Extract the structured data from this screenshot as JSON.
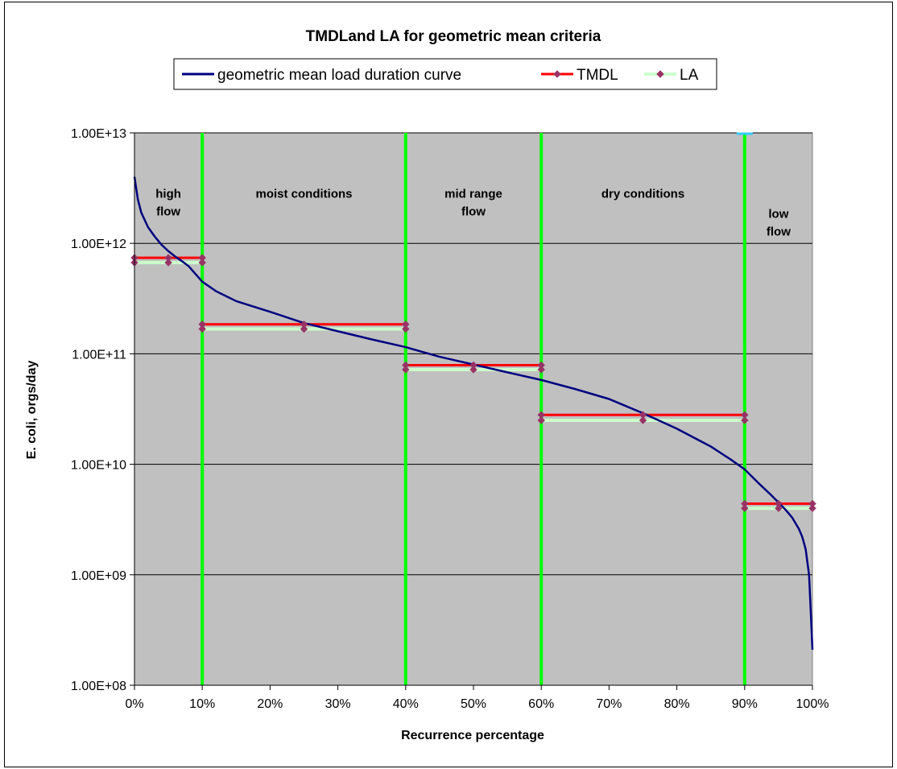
{
  "chart_data": {
    "type": "line",
    "title": "TMDLand LA for geometric mean criteria",
    "xlabel": "Recurrence percentage",
    "ylabel": "E. coli, orgs/day",
    "x_scale": "linear",
    "y_scale": "log",
    "xlim": [
      0,
      100
    ],
    "ylim": [
      100000000,
      10000000000000
    ],
    "x_ticks": [
      0,
      10,
      20,
      30,
      40,
      50,
      60,
      70,
      80,
      90,
      100
    ],
    "x_tick_labels": [
      "0%",
      "10%",
      "20%",
      "30%",
      "40%",
      "50%",
      "60%",
      "70%",
      "80%",
      "90%",
      "100%"
    ],
    "y_ticks": [
      100000000,
      1000000000,
      10000000000,
      100000000000,
      1000000000000,
      10000000000000
    ],
    "y_tick_labels": [
      "1.00E+08",
      "1.00E+09",
      "1.00E+10",
      "1.00E+11",
      "1.00E+12",
      "1.00E+13"
    ],
    "grid": "horizontal",
    "plot_background": "#c0c0c0",
    "legend": {
      "placement": "top",
      "entries": [
        "geometric mean load duration curve",
        "TMDL",
        "LA"
      ]
    },
    "series": [
      {
        "name": "geometric mean load duration curve",
        "color": "#000080",
        "x": [
          0,
          0.5,
          1,
          2,
          3,
          4,
          5,
          6,
          7,
          8,
          10,
          12,
          15,
          20,
          25,
          30,
          35,
          40,
          45,
          50,
          55,
          60,
          65,
          70,
          75,
          80,
          85,
          88,
          90,
          92,
          94,
          95,
          96,
          97,
          98,
          98.5,
          99,
          99.5,
          99.8,
          100
        ],
        "y": [
          4000000000000.0,
          2500000000000.0,
          1900000000000.0,
          1400000000000.0,
          1150000000000.0,
          970000000000.0,
          850000000000.0,
          760000000000.0,
          690000000000.0,
          620000000000.0,
          450000000000.0,
          370000000000.0,
          300000000000.0,
          240000000000.0,
          190000000000.0,
          160000000000.0,
          135000000000.0,
          115000000000.0,
          94000000000.0,
          80000000000.0,
          68000000000.0,
          58000000000.0,
          48000000000.0,
          39000000000.0,
          29000000000.0,
          21000000000.0,
          14500000000.0,
          11000000000.0,
          9000000000.0,
          6800000000.0,
          5200000000.0,
          4500000000.0,
          3900000000.0,
          3300000000.0,
          2600000000.0,
          2200000000.0,
          1700000000.0,
          1000000000.0,
          400000000.0,
          210000000.0
        ]
      },
      {
        "name": "TMDL",
        "color": "#ff0000",
        "segments": [
          {
            "x": [
              0,
              5,
              10
            ],
            "y": [
              740000000000.0,
              740000000000.0,
              740000000000.0
            ]
          },
          {
            "x": [
              10,
              25,
              40
            ],
            "y": [
              185000000000.0,
              185000000000.0,
              185000000000.0
            ]
          },
          {
            "x": [
              40,
              50,
              60
            ],
            "y": [
              79000000000.0,
              79000000000.0,
              79000000000.0
            ]
          },
          {
            "x": [
              60,
              75,
              90
            ],
            "y": [
              28000000000.0,
              28000000000.0,
              28000000000.0
            ]
          },
          {
            "x": [
              90,
              95,
              100
            ],
            "y": [
              4400000000.0,
              4400000000.0,
              4400000000.0
            ]
          }
        ]
      },
      {
        "name": "LA",
        "color": "#ccffcc",
        "marker_color": "#993366",
        "segments": [
          {
            "x": [
              0,
              5,
              10
            ],
            "y": [
              670000000000.0,
              670000000000.0,
              670000000000.0
            ]
          },
          {
            "x": [
              10,
              25,
              40
            ],
            "y": [
              168000000000.0,
              168000000000.0,
              168000000000.0
            ]
          },
          {
            "x": [
              40,
              50,
              60
            ],
            "y": [
              72000000000.0,
              72000000000.0,
              72000000000.0
            ]
          },
          {
            "x": [
              60,
              75,
              90
            ],
            "y": [
              25000000000.0,
              25000000000.0,
              25000000000.0
            ]
          },
          {
            "x": [
              90,
              95,
              100
            ],
            "y": [
              4000000000.0,
              4000000000.0,
              4000000000.0
            ]
          }
        ]
      }
    ],
    "dividers": {
      "color": "#00ff00",
      "x": [
        10,
        40,
        60,
        90
      ]
    },
    "regions": [
      {
        "lines": [
          "high",
          "flow"
        ],
        "x": 5,
        "y": 2600000000000.0
      },
      {
        "lines": [
          "moist conditions"
        ],
        "x": 25,
        "y": 2600000000000.0
      },
      {
        "lines": [
          "mid range",
          "flow"
        ],
        "x": 50,
        "y": 2600000000000.0
      },
      {
        "lines": [
          "dry conditions"
        ],
        "x": 75,
        "y": 2600000000000.0
      },
      {
        "lines": [
          "low",
          "flow"
        ],
        "x": 95,
        "y": 1700000000000.0
      }
    ]
  }
}
